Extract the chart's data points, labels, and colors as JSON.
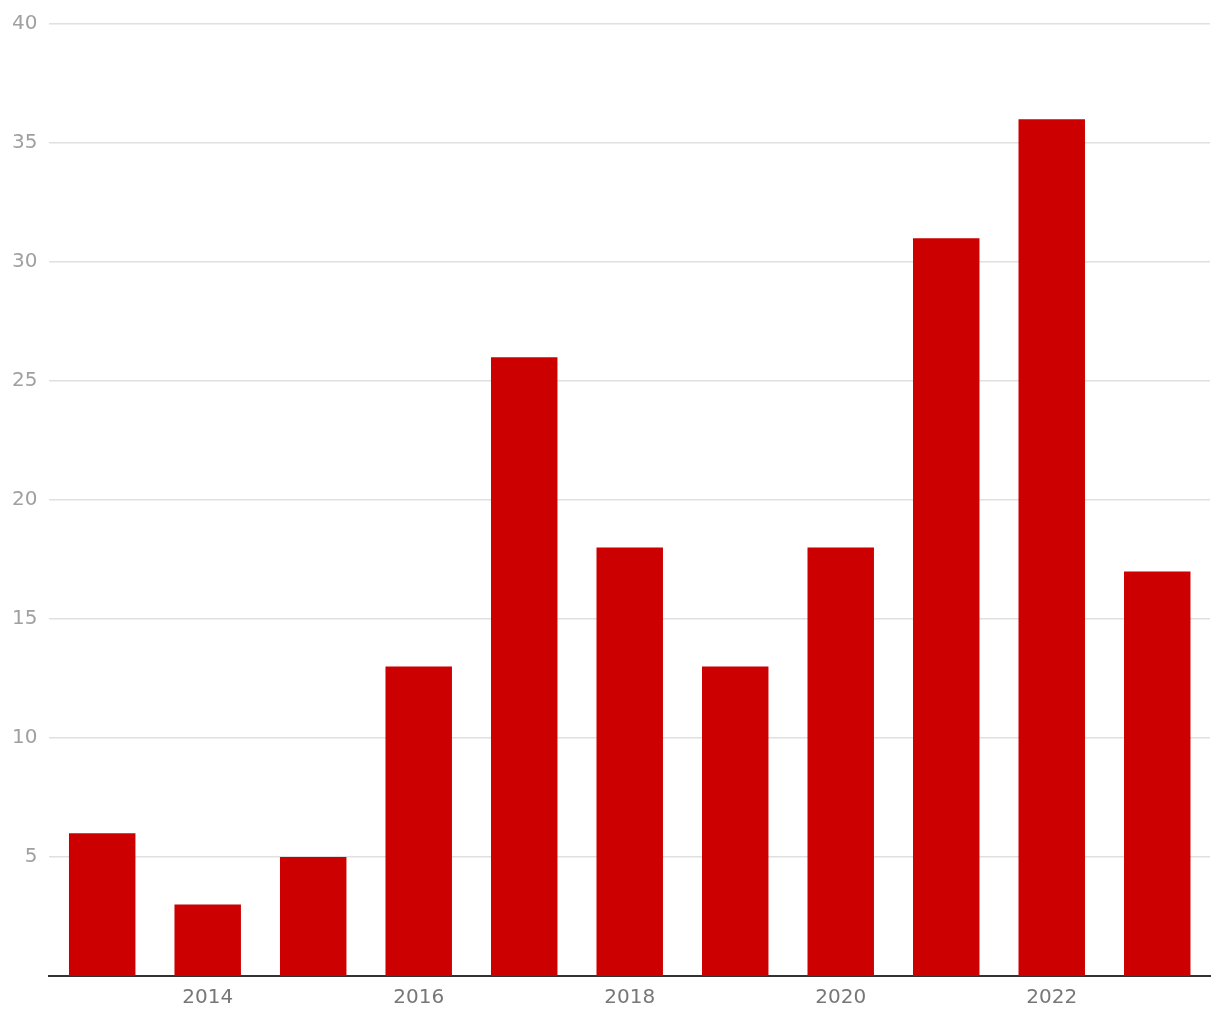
{
  "chart_data": {
    "type": "bar",
    "categories": [
      null,
      "2014",
      null,
      "2016",
      null,
      "2018",
      null,
      "2020",
      null,
      "2022",
      null
    ],
    "values": [
      6,
      3,
      5,
      13,
      26,
      18,
      13,
      18,
      31,
      36,
      17
    ],
    "color": "#cc0000",
    "ylim": [
      0,
      40
    ],
    "yticks": [
      5,
      10,
      15,
      20,
      25,
      30,
      35,
      40
    ],
    "grid": "y",
    "legend": false
  }
}
